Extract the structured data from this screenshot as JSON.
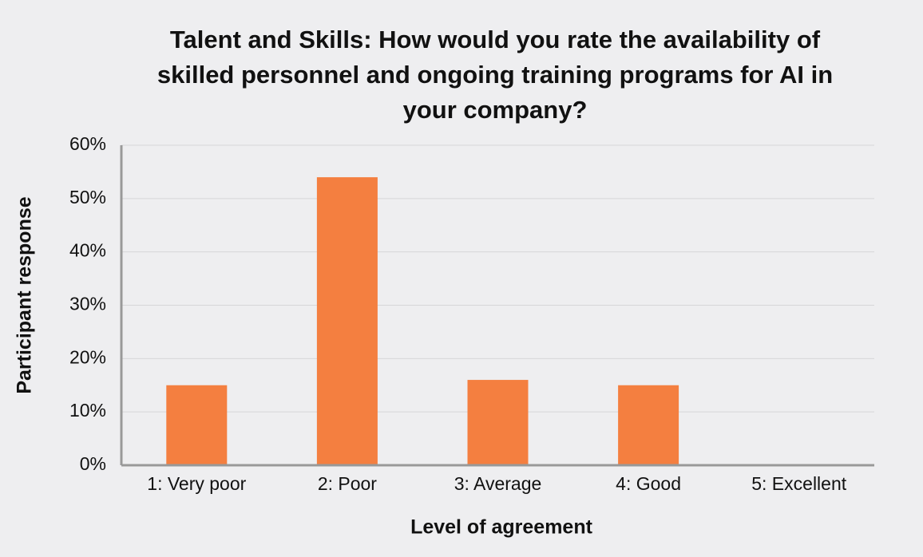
{
  "chart_data": {
    "type": "bar",
    "title": "Talent and Skills: How would you rate the availability of skilled personnel and ongoing training programs for AI in your company?",
    "x_label": "Level of agreement",
    "y_label": "Participant response",
    "categories": [
      "1: Very poor",
      "2: Poor",
      "3: Average",
      "4: Good",
      "5: Excellent"
    ],
    "values": [
      15,
      54,
      16,
      15,
      0
    ],
    "color": "#f47f40",
    "ylim": [
      0,
      60
    ],
    "yticks": [
      {
        "value": 0,
        "label": "0%"
      },
      {
        "value": 10,
        "label": "10%"
      },
      {
        "value": 20,
        "label": "20%"
      },
      {
        "value": 30,
        "label": "30%"
      },
      {
        "value": 40,
        "label": "40%"
      },
      {
        "value": 50,
        "label": "50%"
      },
      {
        "value": 60,
        "label": "60%"
      }
    ],
    "grid": true
  }
}
